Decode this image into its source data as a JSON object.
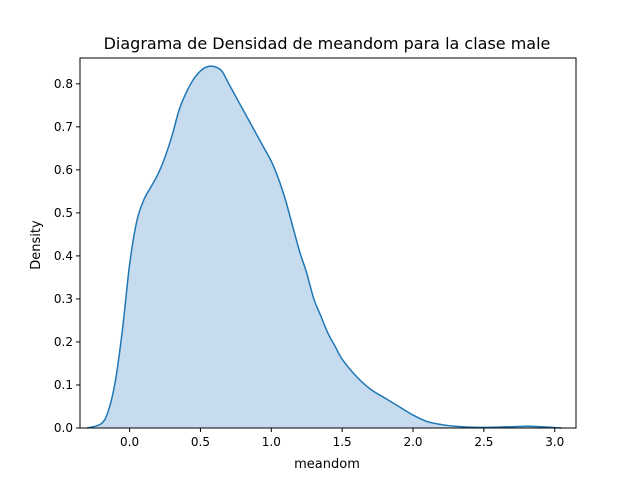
{
  "chart_data": {
    "type": "area",
    "title": "Diagrama de Densidad de meandom para la clase male",
    "xlabel": "meandom",
    "ylabel": "Density",
    "xlim": [
      -0.35,
      3.15
    ],
    "ylim": [
      0,
      0.86
    ],
    "x_ticks": [
      "0.0",
      "0.5",
      "1.0",
      "1.5",
      "2.0",
      "2.5",
      "3.0"
    ],
    "y_ticks": [
      "0.0",
      "0.1",
      "0.2",
      "0.3",
      "0.4",
      "0.5",
      "0.6",
      "0.7",
      "0.8"
    ],
    "grid": false,
    "series": [
      {
        "x": [
          -0.3,
          -0.2,
          -0.15,
          -0.1,
          -0.05,
          0.0,
          0.05,
          0.1,
          0.15,
          0.2,
          0.25,
          0.3,
          0.35,
          0.4,
          0.45,
          0.5,
          0.55,
          0.6,
          0.65,
          0.7,
          0.75,
          0.8,
          0.85,
          0.9,
          0.95,
          1.0,
          1.05,
          1.1,
          1.15,
          1.2,
          1.25,
          1.3,
          1.35,
          1.4,
          1.45,
          1.5,
          1.6,
          1.7,
          1.8,
          1.9,
          2.0,
          2.1,
          2.2,
          2.3,
          2.4,
          2.5,
          2.6,
          2.7,
          2.8,
          2.9,
          3.0,
          3.05
        ],
        "values": [
          0.0,
          0.01,
          0.04,
          0.11,
          0.23,
          0.38,
          0.48,
          0.53,
          0.56,
          0.59,
          0.63,
          0.68,
          0.74,
          0.78,
          0.81,
          0.83,
          0.84,
          0.84,
          0.83,
          0.8,
          0.77,
          0.74,
          0.71,
          0.68,
          0.65,
          0.62,
          0.58,
          0.53,
          0.47,
          0.41,
          0.36,
          0.3,
          0.26,
          0.22,
          0.19,
          0.16,
          0.12,
          0.09,
          0.07,
          0.05,
          0.03,
          0.015,
          0.008,
          0.004,
          0.002,
          0.0015,
          0.002,
          0.003,
          0.004,
          0.003,
          0.001,
          0.0
        ]
      }
    ],
    "colors": {
      "line": "#1f77b4",
      "fill": "#c6dbed"
    }
  }
}
